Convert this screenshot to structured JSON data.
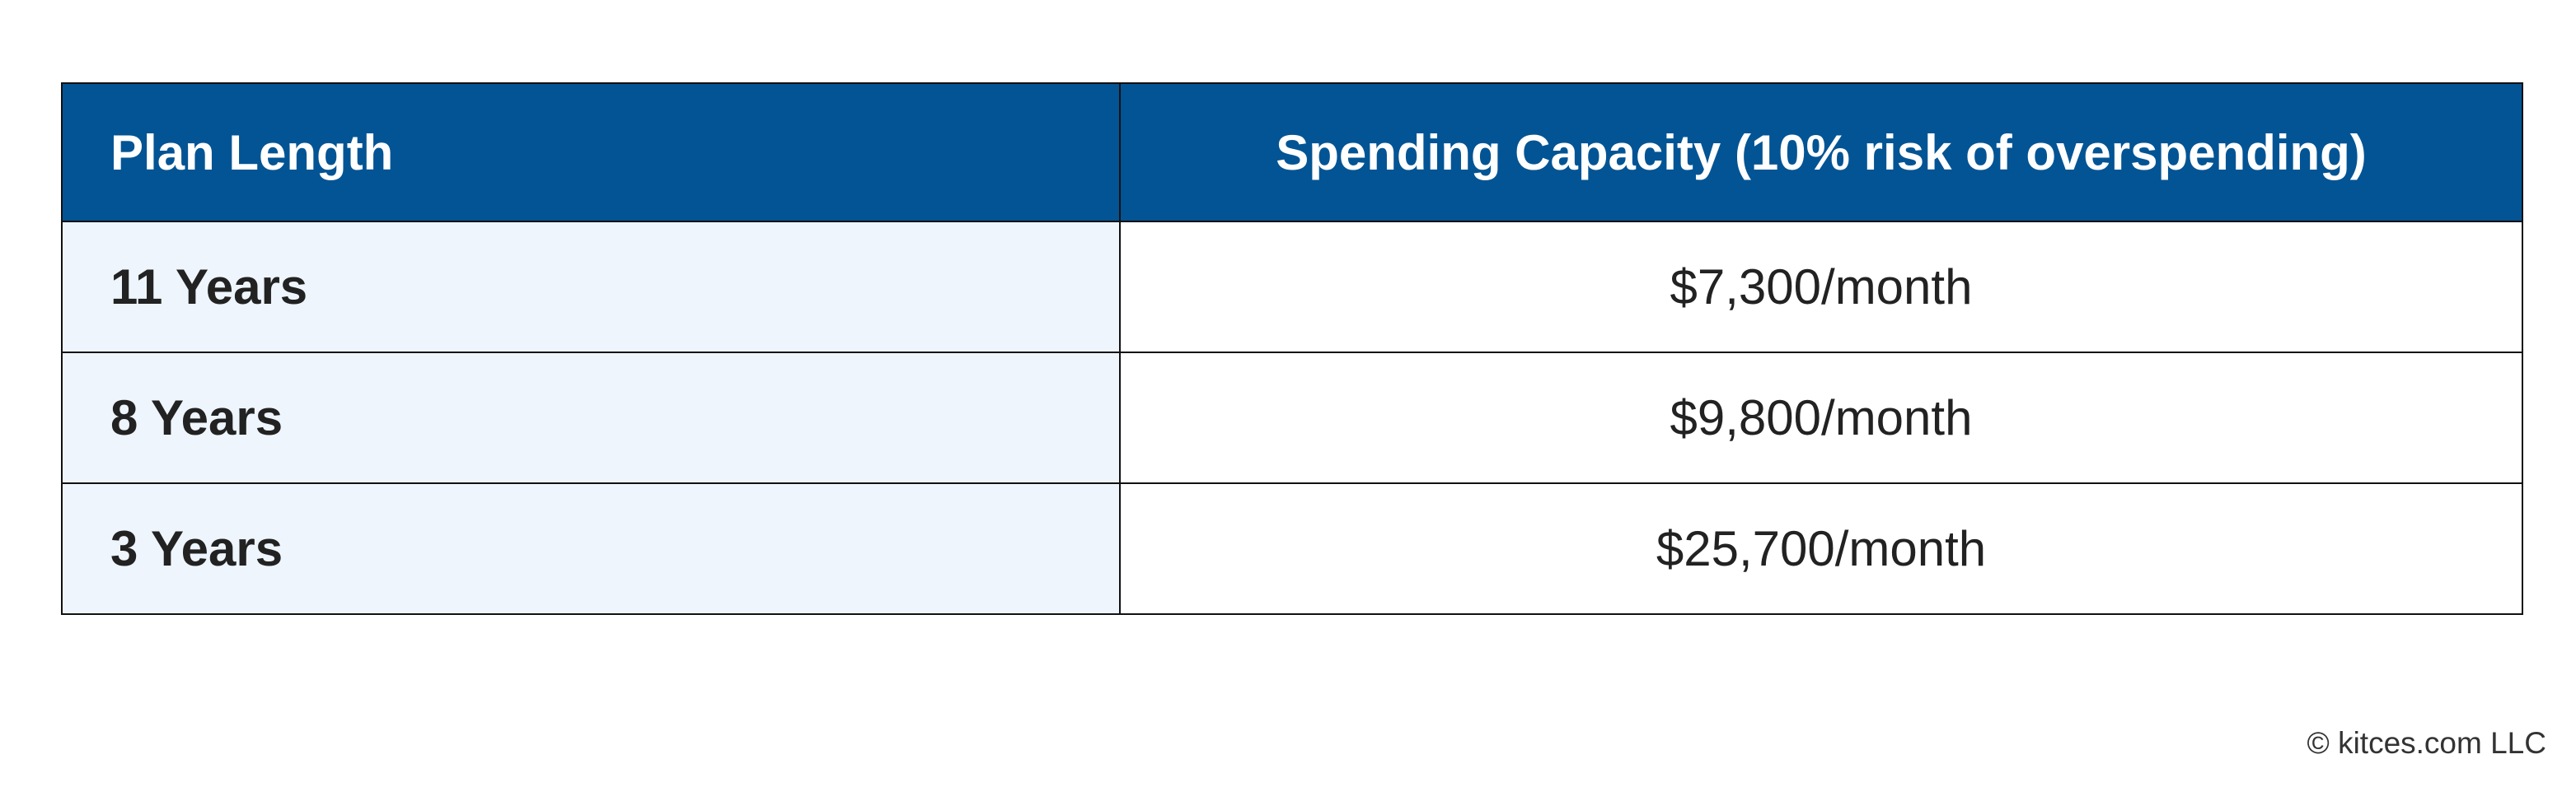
{
  "table": {
    "headers": [
      "Plan Length",
      "Spending Capacity (10% risk of overspending)"
    ],
    "rows": [
      [
        "11 Years",
        "$7,300/month"
      ],
      [
        "8 Years",
        "$9,800/month"
      ],
      [
        "3 Years",
        "$25,700/month"
      ]
    ]
  },
  "footer": {
    "copyright": "© kitces.com LLC"
  },
  "colors": {
    "header_background": "#035494",
    "first_column_background": "#eef5fc",
    "header_text": "#ffffff",
    "border": "#111111"
  }
}
